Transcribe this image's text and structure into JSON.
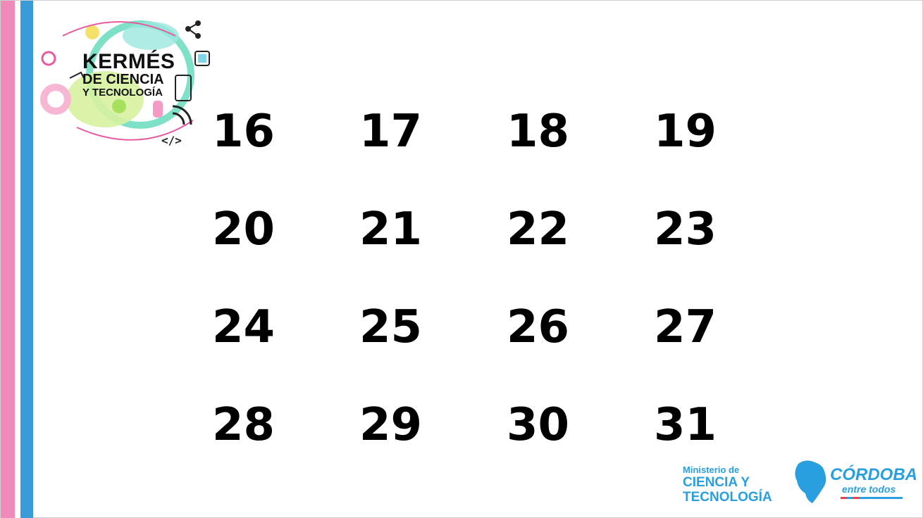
{
  "logo": {
    "line1": "KERMÉS",
    "line2": "DE CIENCIA",
    "line3": "Y TECNOLOGÍA"
  },
  "numbers": [
    "16",
    "17",
    "18",
    "19",
    "20",
    "21",
    "22",
    "23",
    "24",
    "25",
    "26",
    "27",
    "28",
    "29",
    "30",
    "31"
  ],
  "footer": {
    "ministry_small": "Ministerio de",
    "ministry_line1": "CIENCIA Y",
    "ministry_line2": "TECNOLOGÍA",
    "cordoba_title": "CÓRDOBA",
    "cordoba_sub": "entre todos"
  },
  "colors": {
    "pink_stripe": "#f08ab8",
    "blue_stripe": "#3a9bd9",
    "brand_blue": "#2a9fe0"
  }
}
